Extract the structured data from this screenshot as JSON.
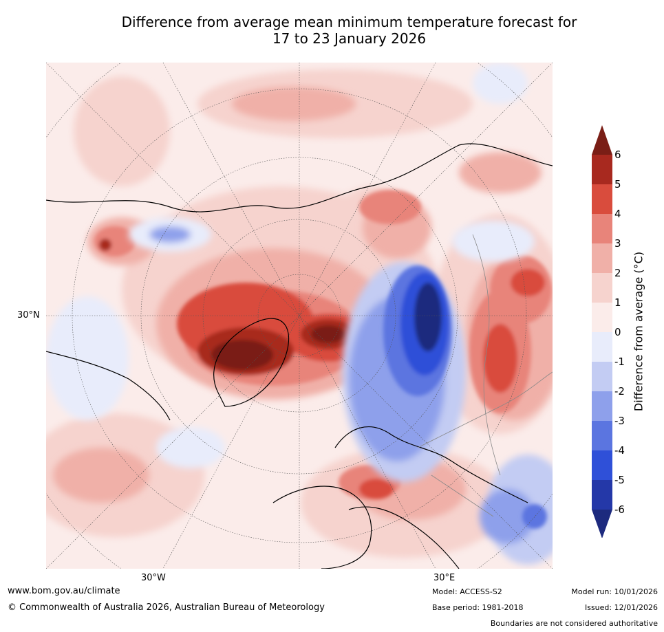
{
  "title": {
    "line1": "Difference from average mean minimum temperature forecast for",
    "line2": "17 to 23 January 2026"
  },
  "map": {
    "lat_label": "30°N",
    "lon_label_west": "30°W",
    "lon_label_east": "30°E"
  },
  "colorbar": {
    "label": "Difference from average (°C)",
    "ticks": [
      "6",
      "5",
      "4",
      "3",
      "2",
      "1",
      "0",
      "-1",
      "-2",
      "-3",
      "-4",
      "-5",
      "-6"
    ],
    "colors": [
      "#7a1e16",
      "#a8291f",
      "#d94c3d",
      "#e8847a",
      "#f0b0a8",
      "#f6d3ce",
      "#fbecea",
      "#e8ecfb",
      "#c3ccf3",
      "#8ea0eb",
      "#5b75e0",
      "#2f50d8",
      "#2438a8",
      "#1d2a7e"
    ]
  },
  "footer": {
    "url": "www.bom.gov.au/climate",
    "copyright": "© Commonwealth of Australia 2026, Australian Bureau of Meteorology",
    "model": "Model: ACCESS-S2",
    "base_period": "Base period: 1981-2018",
    "model_run": "Model run: 10/01/2026",
    "issued": "Issued: 12/01/2026",
    "disclaimer": "Boundaries are not considered authoritative"
  }
}
